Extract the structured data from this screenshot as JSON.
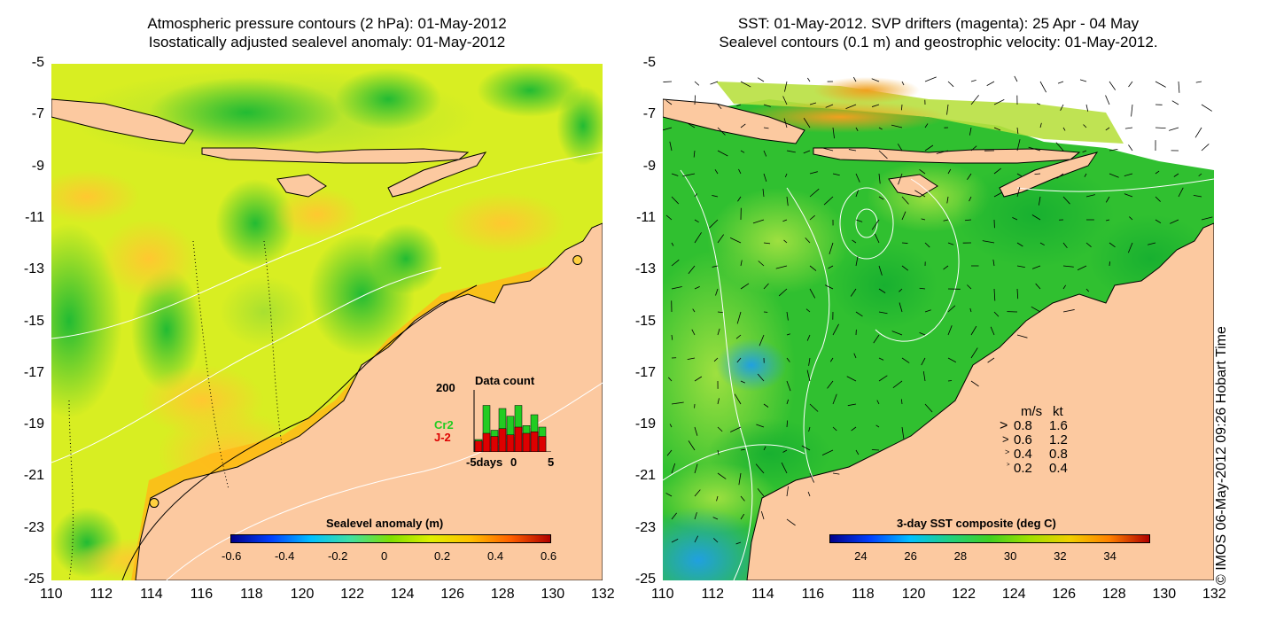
{
  "left_panel": {
    "title_line1": "Atmospheric pressure contours (2 hPa): 01-May-2012",
    "title_line2": "Isostatically adjusted sealevel anomaly: 01-May-2012",
    "colorbar_label": "Sealevel anomaly (m)",
    "colorbar_ticks": [
      "-0.6",
      "-0.4",
      "-0.2",
      "0",
      "0.2",
      "0.4",
      "0.6"
    ],
    "inset": {
      "title": "Data count",
      "y_tick": "200",
      "series_labels": [
        "Cr2",
        "J-2"
      ],
      "x_ticks": [
        "-5days",
        "0",
        "5"
      ],
      "series_colors": {
        "Cr2": "#22cc22",
        "J-2": "#dd0000"
      },
      "bars_cr2": [
        40,
        150,
        70,
        140,
        115,
        150,
        85,
        120,
        80
      ],
      "bars_j2": [
        35,
        60,
        50,
        75,
        55,
        80,
        60,
        65,
        50
      ]
    },
    "markers": [
      {
        "lon": 131.0,
        "lat": -12.6
      },
      {
        "lon": 114.1,
        "lat": -22.0
      }
    ]
  },
  "right_panel": {
    "title_line1": "SST: 01-May-2012. SVP drifters (magenta): 25 Apr - 04 May",
    "title_line2": "Sealevel contours (0.1 m) and geostrophic velocity: 01-May-2012.",
    "colorbar_label": "3-day SST composite (deg C)",
    "colorbar_ticks": [
      "24",
      "26",
      "28",
      "30",
      "32",
      "34"
    ],
    "legend": {
      "header_ms": "m/s",
      "header_kt": "kt",
      "rows": [
        {
          "ms": "0.8",
          "kt": "1.6"
        },
        {
          "ms": "0.6",
          "kt": "1.2"
        },
        {
          "ms": "0.4",
          "kt": "0.8"
        },
        {
          "ms": "0.2",
          "kt": "0.4"
        }
      ]
    }
  },
  "axes": {
    "lon_ticks": [
      "110",
      "112",
      "114",
      "116",
      "118",
      "120",
      "122",
      "124",
      "126",
      "128",
      "130",
      "132"
    ],
    "lat_ticks": [
      "-5",
      "-7",
      "-9",
      "-11",
      "-13",
      "-15",
      "-17",
      "-19",
      "-21",
      "-23",
      "-25"
    ],
    "lon_range": [
      110,
      132
    ],
    "lat_range": [
      -25,
      -5
    ]
  },
  "credit": "© IMOS 06-May-2012 09:26 Hobart Time",
  "colors": {
    "land": "#fcc9a0",
    "anomaly_scale": [
      "#00008b",
      "#0040ff",
      "#00c0ff",
      "#40e0a0",
      "#80e000",
      "#e0f000",
      "#ffc000",
      "#ff6000",
      "#b00000"
    ],
    "sst_scale": [
      "#00008b",
      "#0040ff",
      "#00c0ff",
      "#20d080",
      "#40d020",
      "#a0e000",
      "#f0d000",
      "#ff8000",
      "#b00000"
    ]
  }
}
